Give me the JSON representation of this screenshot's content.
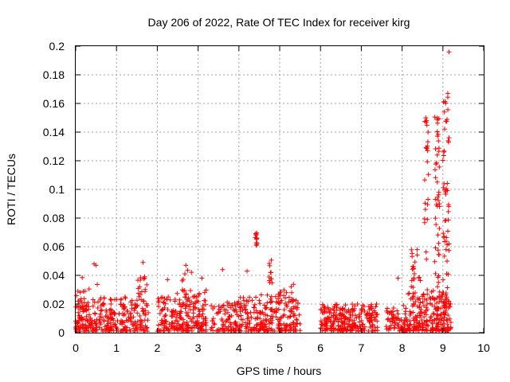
{
  "chart_data": {
    "type": "scatter",
    "title": "Day 206 of 2022, Rate Of TEC Index for receiver kirg",
    "xlabel": "GPS time / hours",
    "ylabel": "ROTI / TECUs",
    "xlim": [
      0,
      10
    ],
    "ylim": [
      0,
      0.2
    ],
    "xticks": [
      "0",
      "1",
      "2",
      "3",
      "4",
      "5",
      "6",
      "7",
      "8",
      "9",
      "10"
    ],
    "yticks": [
      "0",
      "0.02",
      "0.04",
      "0.06",
      "0.08",
      "0.1",
      "0.12",
      "0.14",
      "0.16",
      "0.18",
      "0.2"
    ],
    "grid": true,
    "marker": "+",
    "color": "#ff0000",
    "clusters": [
      {
        "x": [
          0.0,
          0.15
        ],
        "ymax": 0.03,
        "n": 40
      },
      {
        "x": [
          0.15,
          0.9
        ],
        "ymax": 0.025,
        "n": 120
      },
      {
        "x": [
          0.15,
          0.9
        ],
        "ymax": 0.047,
        "n": 25
      },
      {
        "x": [
          0.9,
          1.5
        ],
        "ymax": 0.025,
        "n": 90
      },
      {
        "x": [
          1.5,
          1.8
        ],
        "ymax": 0.04,
        "n": 50
      },
      {
        "x": [
          1.5,
          1.8
        ],
        "ymax": 0.049,
        "n": 5
      },
      {
        "x": [
          2.0,
          2.6
        ],
        "ymax": 0.025,
        "n": 90
      },
      {
        "x": [
          2.35,
          2.5
        ],
        "ymax": 0.033,
        "n": 10
      },
      {
        "x": [
          2.6,
          3.2
        ],
        "ymax": 0.03,
        "n": 110
      },
      {
        "x": [
          2.6,
          3.2
        ],
        "ymax": 0.045,
        "n": 20
      },
      {
        "x": [
          3.3,
          4.0
        ],
        "ymax": 0.022,
        "n": 90
      },
      {
        "x": [
          4.0,
          4.55
        ],
        "ymax": 0.025,
        "n": 80
      },
      {
        "x": [
          4.5,
          5.5
        ],
        "ymax": 0.03,
        "n": 150
      },
      {
        "x": [
          4.75,
          5.0
        ],
        "ymax": 0.045,
        "n": 15
      },
      {
        "x": [
          5.2,
          5.45
        ],
        "ymax": 0.039,
        "n": 10
      },
      {
        "x": [
          6.0,
          6.8
        ],
        "ymax": 0.02,
        "n": 160
      },
      {
        "x": [
          6.8,
          7.4
        ],
        "ymax": 0.02,
        "n": 90
      },
      {
        "x": [
          7.6,
          8.0
        ],
        "ymax": 0.02,
        "n": 50
      },
      {
        "x": [
          8.0,
          8.5
        ],
        "ymax": 0.028,
        "n": 100
      },
      {
        "x": [
          8.5,
          9.2
        ],
        "ymax": 0.03,
        "n": 150
      }
    ],
    "bands": [
      {
        "x": [
          4.4,
          4.45
        ],
        "y": [
          0.058,
          0.071
        ],
        "n": 12
      },
      {
        "x": [
          4.72,
          4.82
        ],
        "y": [
          0.034,
          0.055
        ],
        "n": 10
      },
      {
        "x": [
          8.2,
          8.45
        ],
        "y": [
          0.03,
          0.06
        ],
        "n": 20
      },
      {
        "x": [
          8.55,
          8.65
        ],
        "y": [
          0.05,
          0.15
        ],
        "n": 22
      },
      {
        "x": [
          8.8,
          8.92
        ],
        "y": [
          0.02,
          0.155
        ],
        "n": 45
      },
      {
        "x": [
          9.0,
          9.15
        ],
        "y": [
          0.01,
          0.165
        ],
        "n": 60
      }
    ],
    "points": [
      {
        "x": 9.15,
        "y": 0.196
      },
      {
        "x": 9.12,
        "y": 0.167
      },
      {
        "x": 8.58,
        "y": 0.15
      },
      {
        "x": 8.6,
        "y": 0.148
      },
      {
        "x": 4.2,
        "y": 0.043
      },
      {
        "x": 3.6,
        "y": 0.044
      },
      {
        "x": 2.7,
        "y": 0.047
      },
      {
        "x": 2.25,
        "y": 0.037
      },
      {
        "x": 0.45,
        "y": 0.048
      },
      {
        "x": 1.65,
        "y": 0.049
      },
      {
        "x": 6.55,
        "y": 0.001
      },
      {
        "x": 7.9,
        "y": 0.038
      }
    ]
  }
}
